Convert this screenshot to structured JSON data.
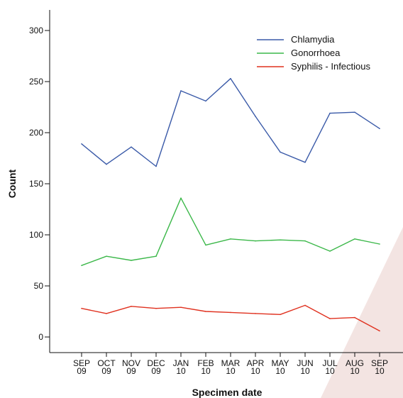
{
  "chart_data": {
    "type": "line",
    "title": "",
    "xlabel": "Specimen date",
    "ylabel": "Count",
    "ylim": [
      0,
      300
    ],
    "yticks": [
      0,
      50,
      100,
      150,
      200,
      250,
      300
    ],
    "categories": [
      {
        "month": "SEP",
        "year": "09"
      },
      {
        "month": "OCT",
        "year": "09"
      },
      {
        "month": "NOV",
        "year": "09"
      },
      {
        "month": "DEC",
        "year": "09"
      },
      {
        "month": "JAN",
        "year": "10"
      },
      {
        "month": "FEB",
        "year": "10"
      },
      {
        "month": "MAR",
        "year": "10"
      },
      {
        "month": "APR",
        "year": "10"
      },
      {
        "month": "MAY",
        "year": "10"
      },
      {
        "month": "JUN",
        "year": "10"
      },
      {
        "month": "JUL",
        "year": "10"
      },
      {
        "month": "AUG",
        "year": "10"
      },
      {
        "month": "SEP",
        "year": "10"
      }
    ],
    "series": [
      {
        "name": "Chlamydia",
        "color": "#3a5aa8",
        "values": [
          189,
          169,
          186,
          167,
          241,
          231,
          253,
          216,
          181,
          171,
          219,
          220,
          204
        ]
      },
      {
        "name": "Gonorrhoea",
        "color": "#3cb84a",
        "values": [
          70,
          79,
          75,
          79,
          136,
          90,
          96,
          94,
          95,
          94,
          84,
          96,
          91
        ]
      },
      {
        "name": "Syphilis - Infectious",
        "color": "#e0311f",
        "values": [
          28,
          23,
          30,
          28,
          29,
          25,
          24,
          23,
          22,
          31,
          18,
          19,
          6
        ]
      }
    ],
    "grid": false,
    "legend_position": "top-right"
  }
}
